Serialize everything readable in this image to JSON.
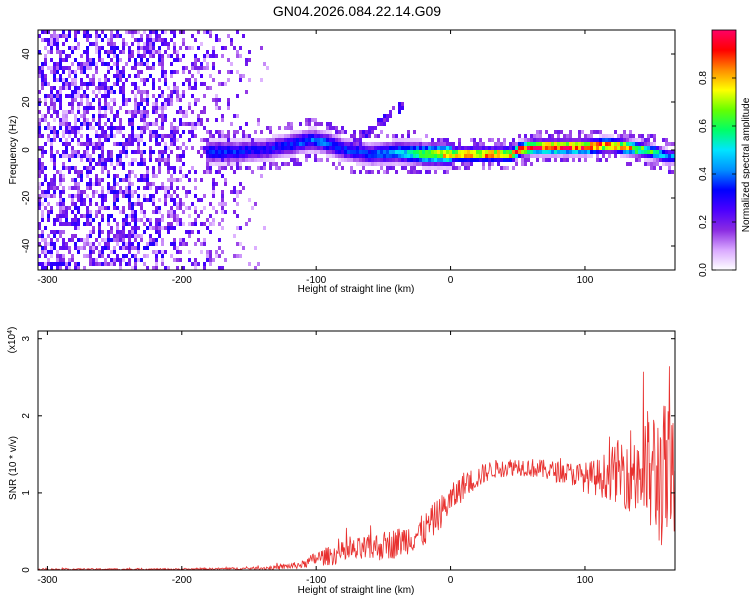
{
  "figure": {
    "title": "GN04.2026.084.22.14.G09"
  },
  "chart_data": [
    {
      "type": "heatmap",
      "title": "GN04.2026.084.22.14.G09",
      "xlabel": "Height of straight line (km)",
      "ylabel": "Frequency (Hz)",
      "xlim": [
        -307,
        167
      ],
      "ylim": [
        -50,
        50
      ],
      "xticks": [
        -300,
        -200,
        -100,
        0,
        100
      ],
      "yticks": [
        -40,
        -20,
        0,
        20,
        40
      ],
      "colorbar": {
        "label": "Normalized spectral amplitude",
        "range": [
          0,
          1
        ],
        "ticks": [
          0.0,
          0.2,
          0.4,
          0.6,
          0.8
        ],
        "colormap": [
          "#ffffff",
          "#d9a8ff",
          "#8a2be2",
          "#4b00ff",
          "#0000ff",
          "#0090ff",
          "#00e5ff",
          "#00ff66",
          "#66ff00",
          "#ffff00",
          "#ff8c00",
          "#ff0000",
          "#ff0066"
        ]
      },
      "ridge": {
        "x": [
          -180,
          -160,
          -140,
          -120,
          -105,
          -95,
          -80,
          -60,
          -40,
          -20,
          0,
          20,
          45,
          50,
          60,
          80,
          100,
          115,
          130,
          150,
          160,
          167
        ],
        "frequency": [
          0,
          0,
          1,
          3,
          5,
          4,
          1,
          -1,
          0,
          -1,
          -1,
          -1,
          -1,
          1,
          2,
          2,
          2,
          3,
          2,
          0,
          -2,
          -2
        ],
        "amplitude": [
          0.35,
          0.35,
          0.3,
          0.35,
          0.38,
          0.38,
          0.35,
          0.35,
          0.45,
          0.65,
          0.8,
          0.85,
          0.85,
          0.9,
          0.95,
          0.95,
          0.92,
          0.88,
          0.8,
          0.6,
          0.45,
          0.4
        ]
      },
      "noise_region": {
        "x_range": [
          -307,
          -135
        ],
        "mean_amplitude": 0.15
      }
    },
    {
      "type": "line",
      "xlabel": "Height of straight line (km)",
      "ylabel": "SNR (10 * v/v)",
      "y_multiplier": "(x10^4)",
      "xlim": [
        -307,
        167
      ],
      "ylim": [
        0,
        3.1
      ],
      "xticks": [
        -300,
        -200,
        -100,
        0,
        100
      ],
      "yticks": [
        0,
        1,
        2,
        3
      ],
      "series": [
        {
          "name": "SNR",
          "color": "#e8312f",
          "envelope_x": [
            -307,
            -250,
            -200,
            -150,
            -130,
            -110,
            -100,
            -80,
            -60,
            -40,
            -20,
            -10,
            0,
            10,
            20,
            30,
            50,
            70,
            90,
            100,
            110,
            120,
            130,
            140,
            150,
            160,
            167
          ],
          "envelope_mean": [
            0.01,
            0.01,
            0.01,
            0.02,
            0.03,
            0.07,
            0.15,
            0.22,
            0.28,
            0.35,
            0.5,
            0.7,
            0.9,
            1.1,
            1.2,
            1.3,
            1.35,
            1.3,
            1.25,
            1.2,
            1.2,
            1.25,
            1.3,
            1.3,
            1.25,
            1.2,
            1.1
          ],
          "envelope_noise": [
            0.01,
            0.01,
            0.01,
            0.015,
            0.03,
            0.05,
            0.1,
            0.15,
            0.18,
            0.2,
            0.22,
            0.22,
            0.2,
            0.18,
            0.15,
            0.12,
            0.12,
            0.13,
            0.15,
            0.2,
            0.25,
            0.35,
            0.5,
            0.7,
            0.9,
            1.0,
            0.9
          ]
        }
      ]
    }
  ]
}
